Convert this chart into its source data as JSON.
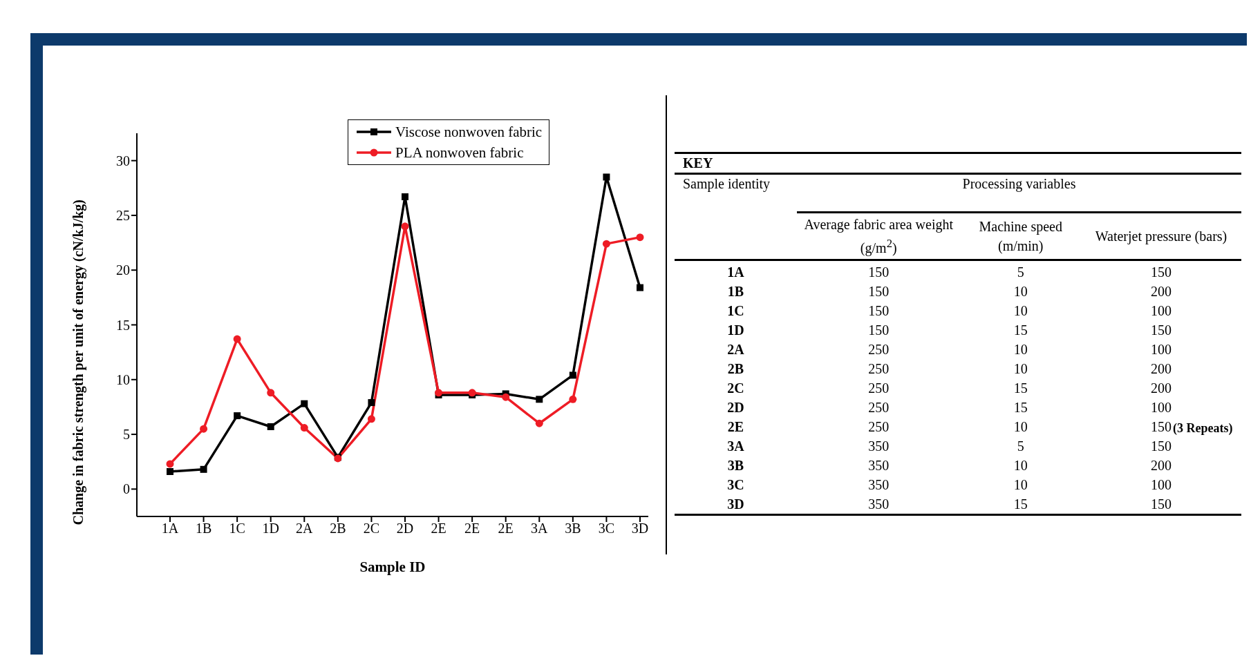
{
  "chart_data": [
    {
      "type": "line",
      "xlabel": "Sample ID",
      "ylabel": "Change in fabric strength per unit of energy (cN/kJ/kg)",
      "categories": [
        "1A",
        "1B",
        "1C",
        "1D",
        "2A",
        "2B",
        "2C",
        "2D",
        "2E",
        "2E",
        "2E",
        "3A",
        "3B",
        "3C",
        "3D"
      ],
      "series": [
        {
          "name": "Viscose nonwoven fabric",
          "color": "#000000",
          "marker": "square",
          "values": [
            1.6,
            1.8,
            6.7,
            5.7,
            7.8,
            2.9,
            7.9,
            26.7,
            8.6,
            8.6,
            8.7,
            8.2,
            10.4,
            28.5,
            18.4
          ]
        },
        {
          "name": "PLA nonwoven fabric",
          "color": "#ee1c25",
          "marker": "circle",
          "values": [
            2.3,
            5.5,
            13.7,
            8.8,
            5.6,
            2.8,
            6.4,
            24.0,
            8.8,
            8.8,
            8.4,
            6.0,
            8.2,
            22.4,
            23.0
          ]
        }
      ],
      "ylim": [
        -2.5,
        32.5
      ],
      "yticks": [
        0,
        5,
        10,
        15,
        20,
        25,
        30
      ],
      "legend": "top right",
      "line_style": "solid"
    },
    {
      "type": "other",
      "title": "KEY",
      "subtitle": "Processing variables",
      "xlabel": "Sample identity",
      "categories": [
        "1A",
        "1B",
        "1C",
        "1D",
        "2A",
        "2B",
        "2C",
        "2D",
        "2E",
        "3A",
        "3B",
        "3C",
        "3D"
      ],
      "series": [
        {
          "name": "Average fabric area weight (g/m$^{2}$)",
          "values": [
            150,
            150,
            150,
            150,
            250,
            250,
            250,
            250,
            250,
            350,
            350,
            350,
            350
          ]
        },
        {
          "name": "Machine speed (m/min)",
          "values": [
            5,
            10,
            10,
            15,
            10,
            10,
            15,
            15,
            10,
            5,
            10,
            10,
            15
          ]
        },
        {
          "name": "Waterjet pressure (bars)",
          "values": [
            150,
            200,
            100,
            150,
            100,
            200,
            200,
            100,
            150,
            150,
            200,
            100,
            150
          ]
        }
      ],
      "data_labels": true,
      "annotations": [
        {
          "text": "(3 Repeats)",
          "x": "2E"
        }
      ]
    }
  ]
}
